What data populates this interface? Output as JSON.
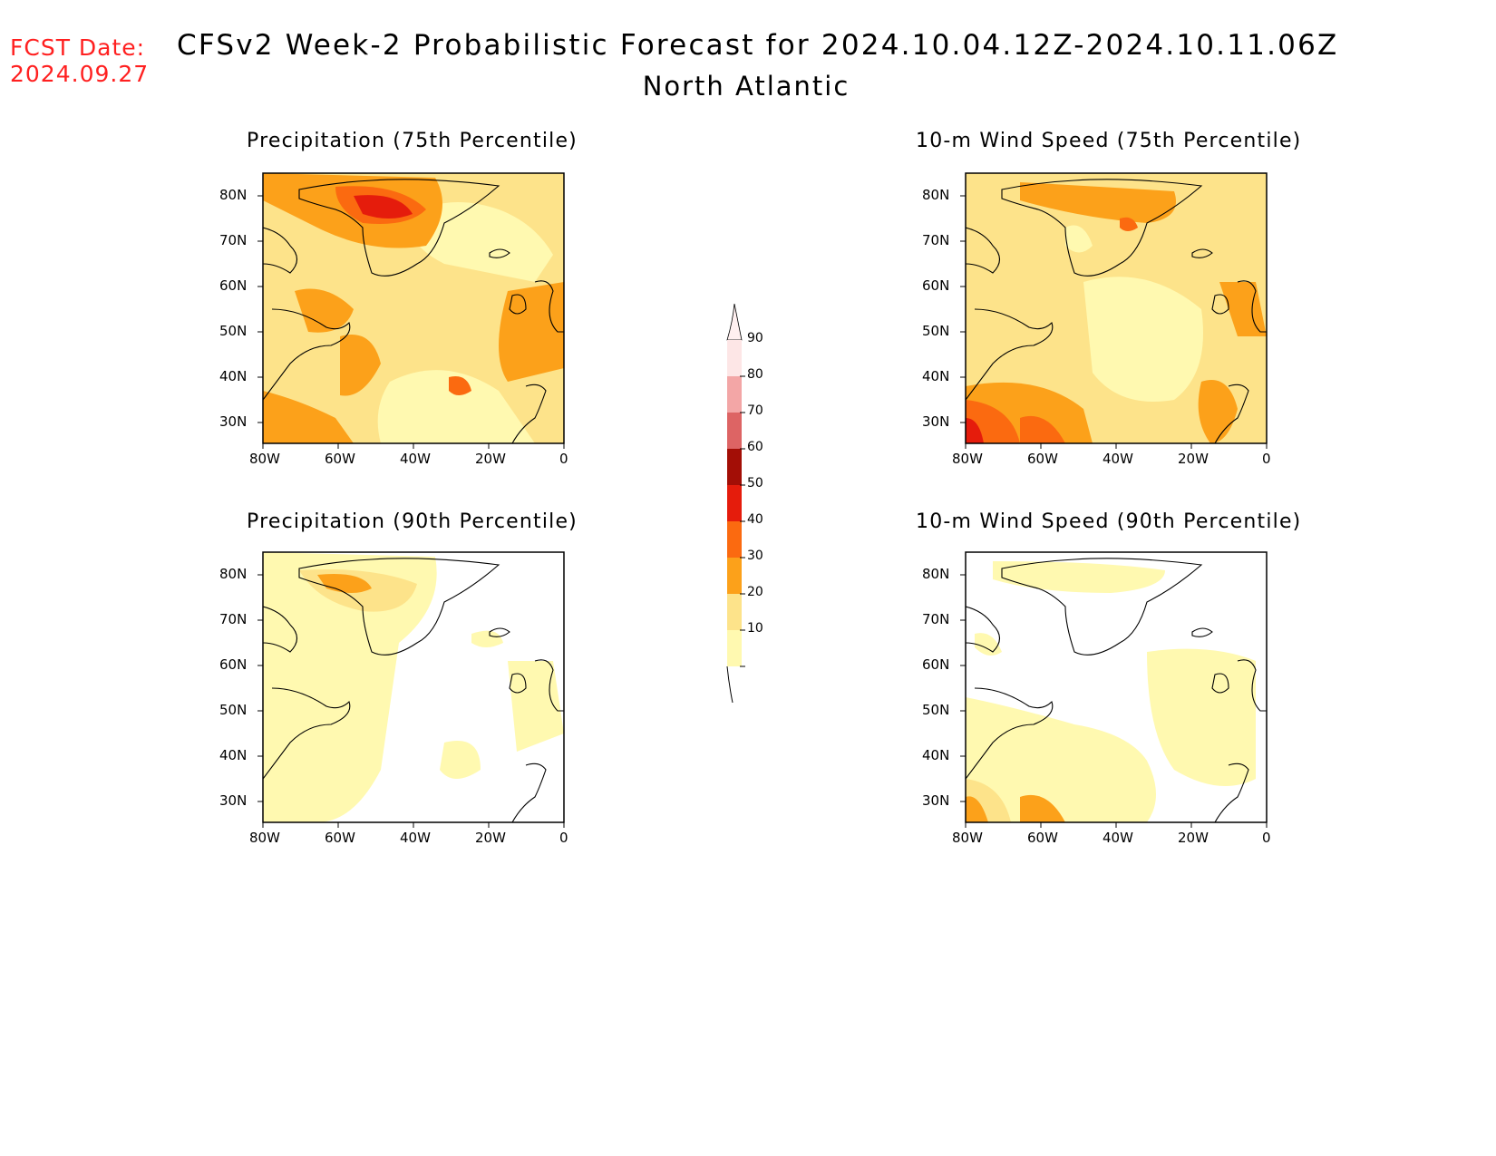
{
  "header": {
    "fcst_label": "FCST Date:",
    "fcst_date": "2024.09.27",
    "title": "CFSv2 Week-2 Probabilistic Forecast for 2024.10.04.12Z-2024.10.11.06Z",
    "region": "North Atlantic"
  },
  "axes": {
    "lat_labels": [
      "80N",
      "70N",
      "60N",
      "50N",
      "40N",
      "30N"
    ],
    "lon_labels": [
      "80W",
      "60W",
      "40W",
      "20W",
      "0"
    ]
  },
  "panels": [
    {
      "title": "Precipitation (75th Percentile)",
      "id": "precip-75"
    },
    {
      "title": "10-m Wind Speed (75th Percentile)",
      "id": "wind-75"
    },
    {
      "title": "Precipitation (90th Percentile)",
      "id": "precip-90"
    },
    {
      "title": "10-m Wind Speed (90th Percentile)",
      "id": "wind-90"
    }
  ],
  "colorbar": {
    "levels": [
      "10",
      "20",
      "30",
      "40",
      "50",
      "60",
      "70",
      "80",
      "90"
    ],
    "colors": [
      "#fff9b0",
      "#fde38a",
      "#fca11a",
      "#fb6a10",
      "#e51c0c",
      "#a30e06",
      "#dd6464",
      "#f3a6a6",
      "#fde6e6"
    ]
  }
}
